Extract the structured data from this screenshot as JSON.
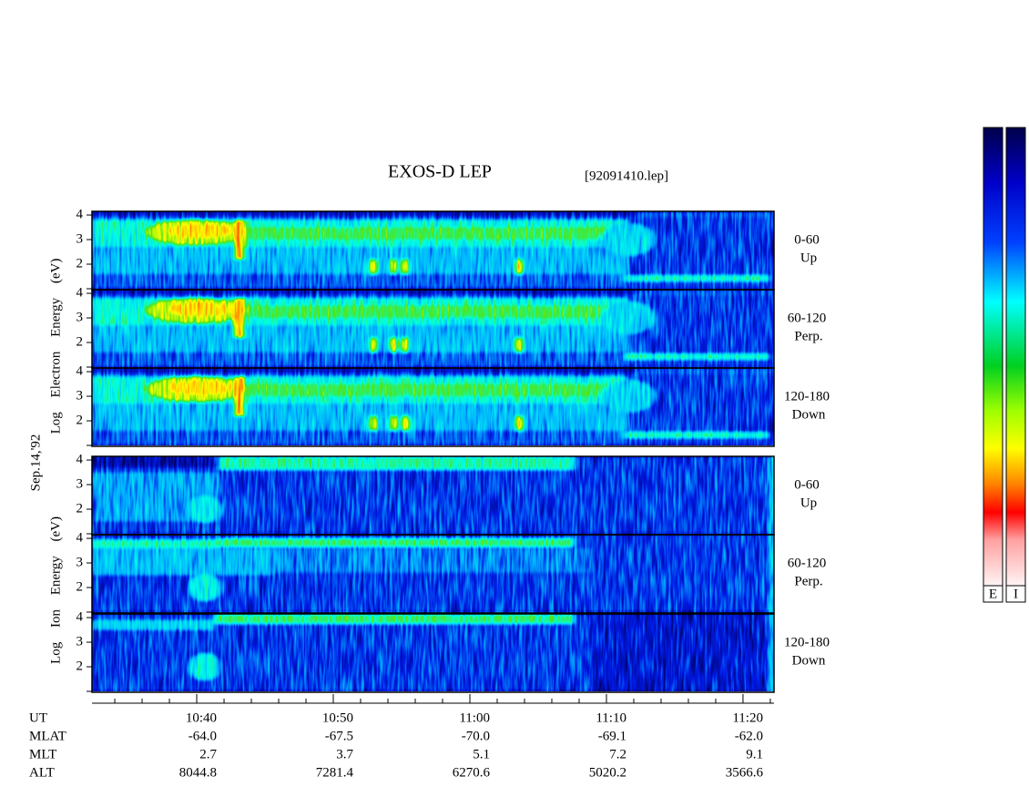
{
  "title": "EXOS-D LEP",
  "filename": "[92091410.lep]",
  "date": "Sep.14,'92",
  "energy_axis": {
    "ylim": [
      1,
      4.15
    ],
    "yticks": [
      2,
      3,
      4
    ]
  },
  "groups": [
    {
      "label": "Log Electron Energy (eV)",
      "panels": [
        {
          "angle": "0-60",
          "direction": "Up"
        },
        {
          "angle": "60-120",
          "direction": "Perp."
        },
        {
          "angle": "120-180",
          "direction": "Down"
        }
      ]
    },
    {
      "label": "Log Ion Energy (eV)",
      "panels": [
        {
          "angle": "0-60",
          "direction": "Up"
        },
        {
          "angle": "60-120",
          "direction": "Perp."
        },
        {
          "angle": "120-180",
          "direction": "Down"
        }
      ]
    }
  ],
  "time_axis": {
    "label": "UT",
    "xlim": [
      632.33,
      682.27
    ],
    "ticks": [
      {
        "value": 640,
        "label": "10:40"
      },
      {
        "value": 650,
        "label": "10:50"
      },
      {
        "value": 660,
        "label": "11:00"
      },
      {
        "value": 670,
        "label": "11:10"
      },
      {
        "value": 680,
        "label": "11:20"
      }
    ],
    "minor_ticks": [
      634,
      636,
      638,
      642,
      644,
      646,
      648,
      652,
      654,
      656,
      658,
      662,
      664,
      666,
      668,
      672,
      674,
      676,
      678,
      682
    ]
  },
  "ephemeris": [
    {
      "label": "MLAT",
      "values": [
        "-64.0",
        "-67.5",
        "-70.0",
        "-69.1",
        "-62.0"
      ]
    },
    {
      "label": "MLT",
      "values": [
        "2.7",
        "3.7",
        "5.1",
        "7.2",
        "9.1"
      ]
    },
    {
      "label": "ALT",
      "values": [
        "8044.8",
        "7281.4",
        "6270.6",
        "5020.2",
        "3566.6"
      ]
    }
  ],
  "colorbars": [
    "E",
    "I"
  ]
}
